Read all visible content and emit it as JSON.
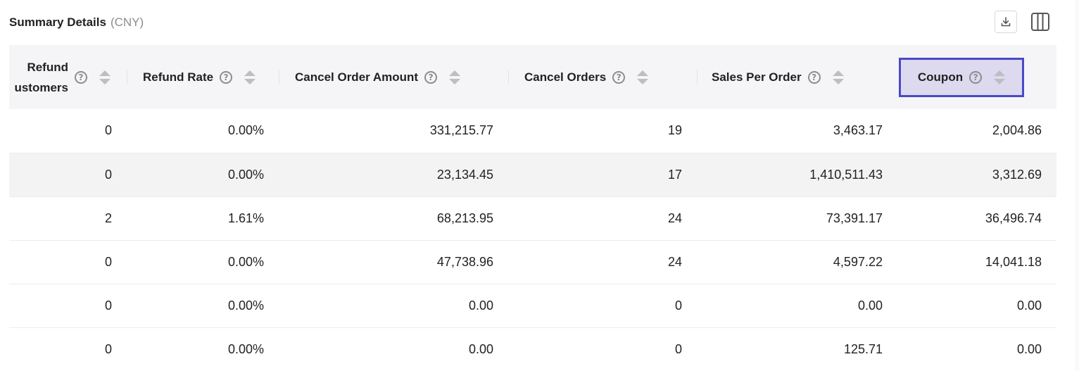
{
  "header": {
    "title": "Summary Details",
    "currency": "(CNY)"
  },
  "toolbar": {
    "download_icon": "download-icon",
    "columns_icon": "columns-icon"
  },
  "table": {
    "columns": [
      {
        "label_line1": "Refund",
        "label_line2": "ustomers"
      },
      {
        "label": "Refund Rate"
      },
      {
        "label": "Cancel Order Amount"
      },
      {
        "label": "Cancel Orders"
      },
      {
        "label": "Sales Per Order"
      },
      {
        "label": "Coupon",
        "highlighted": true
      }
    ],
    "rows": [
      [
        "0",
        "0.00%",
        "331,215.77",
        "19",
        "3,463.17",
        "2,004.86"
      ],
      [
        "0",
        "0.00%",
        "23,134.45",
        "17",
        "1,410,511.43",
        "3,312.69"
      ],
      [
        "2",
        "1.61%",
        "68,213.95",
        "24",
        "73,391.17",
        "36,496.74"
      ],
      [
        "0",
        "0.00%",
        "47,738.96",
        "24",
        "4,597.22",
        "14,041.18"
      ],
      [
        "0",
        "0.00%",
        "0.00",
        "0",
        "0.00",
        "0.00"
      ],
      [
        "0",
        "0.00%",
        "0.00",
        "0",
        "125.71",
        "0.00"
      ]
    ],
    "help_glyph": "?"
  },
  "colors": {
    "header_bg": "#f5f5f7",
    "highlight_border": "#4a49c8",
    "highlight_bg": "#ddd9ee",
    "shaded_row": "#f3f3f3"
  }
}
